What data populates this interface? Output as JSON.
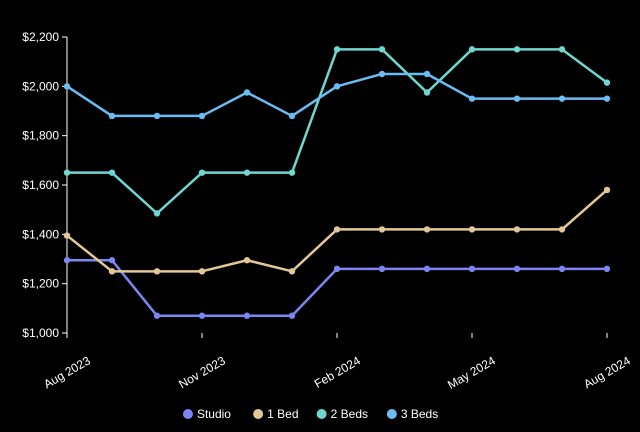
{
  "chart_data": {
    "type": "line",
    "title": "",
    "xlabel": "",
    "ylabel": "",
    "x": [
      "Aug 2023",
      "Sep 2023",
      "Oct 2023",
      "Nov 2023",
      "Dec 2023",
      "Jan 2024",
      "Feb 2024",
      "Mar 2024",
      "Apr 2024",
      "May 2024",
      "Jun 2024",
      "Jul 2024",
      "Aug 2024"
    ],
    "x_tick_labels": [
      "Aug 2023",
      "Nov 2023",
      "Feb 2024",
      "May 2024",
      "Aug 2024"
    ],
    "x_tick_index": [
      0,
      3,
      6,
      9,
      12
    ],
    "ylim": [
      1000,
      2200
    ],
    "y_ticks": [
      1000,
      1200,
      1400,
      1600,
      1800,
      2000,
      2200
    ],
    "y_tick_labels": [
      "$1,000",
      "$1,200",
      "$1,400",
      "$1,600",
      "$1,800",
      "$2,000",
      "$2,200"
    ],
    "grid": false,
    "legend_position": "bottom",
    "series": [
      {
        "name": "Studio",
        "color": "#7b86f0",
        "values": [
          1295,
          1295,
          1070,
          1070,
          1070,
          1070,
          1260,
          1260,
          1260,
          1260,
          1260,
          1260,
          1260
        ]
      },
      {
        "name": "1 Bed",
        "color": "#e3c896",
        "values": [
          1395,
          1250,
          1250,
          1250,
          1295,
          1250,
          1420,
          1420,
          1420,
          1420,
          1420,
          1420,
          1580
        ]
      },
      {
        "name": "2 Beds",
        "color": "#6fd6d0",
        "values": [
          1650,
          1650,
          1485,
          1650,
          1650,
          1650,
          2150,
          2150,
          1975,
          2150,
          2150,
          2150,
          2015
        ]
      },
      {
        "name": "3 Beds",
        "color": "#6bbcf2",
        "values": [
          2000,
          1880,
          1880,
          1880,
          1975,
          1880,
          2000,
          2050,
          2050,
          1950,
          1950,
          1950,
          1950
        ]
      }
    ]
  }
}
